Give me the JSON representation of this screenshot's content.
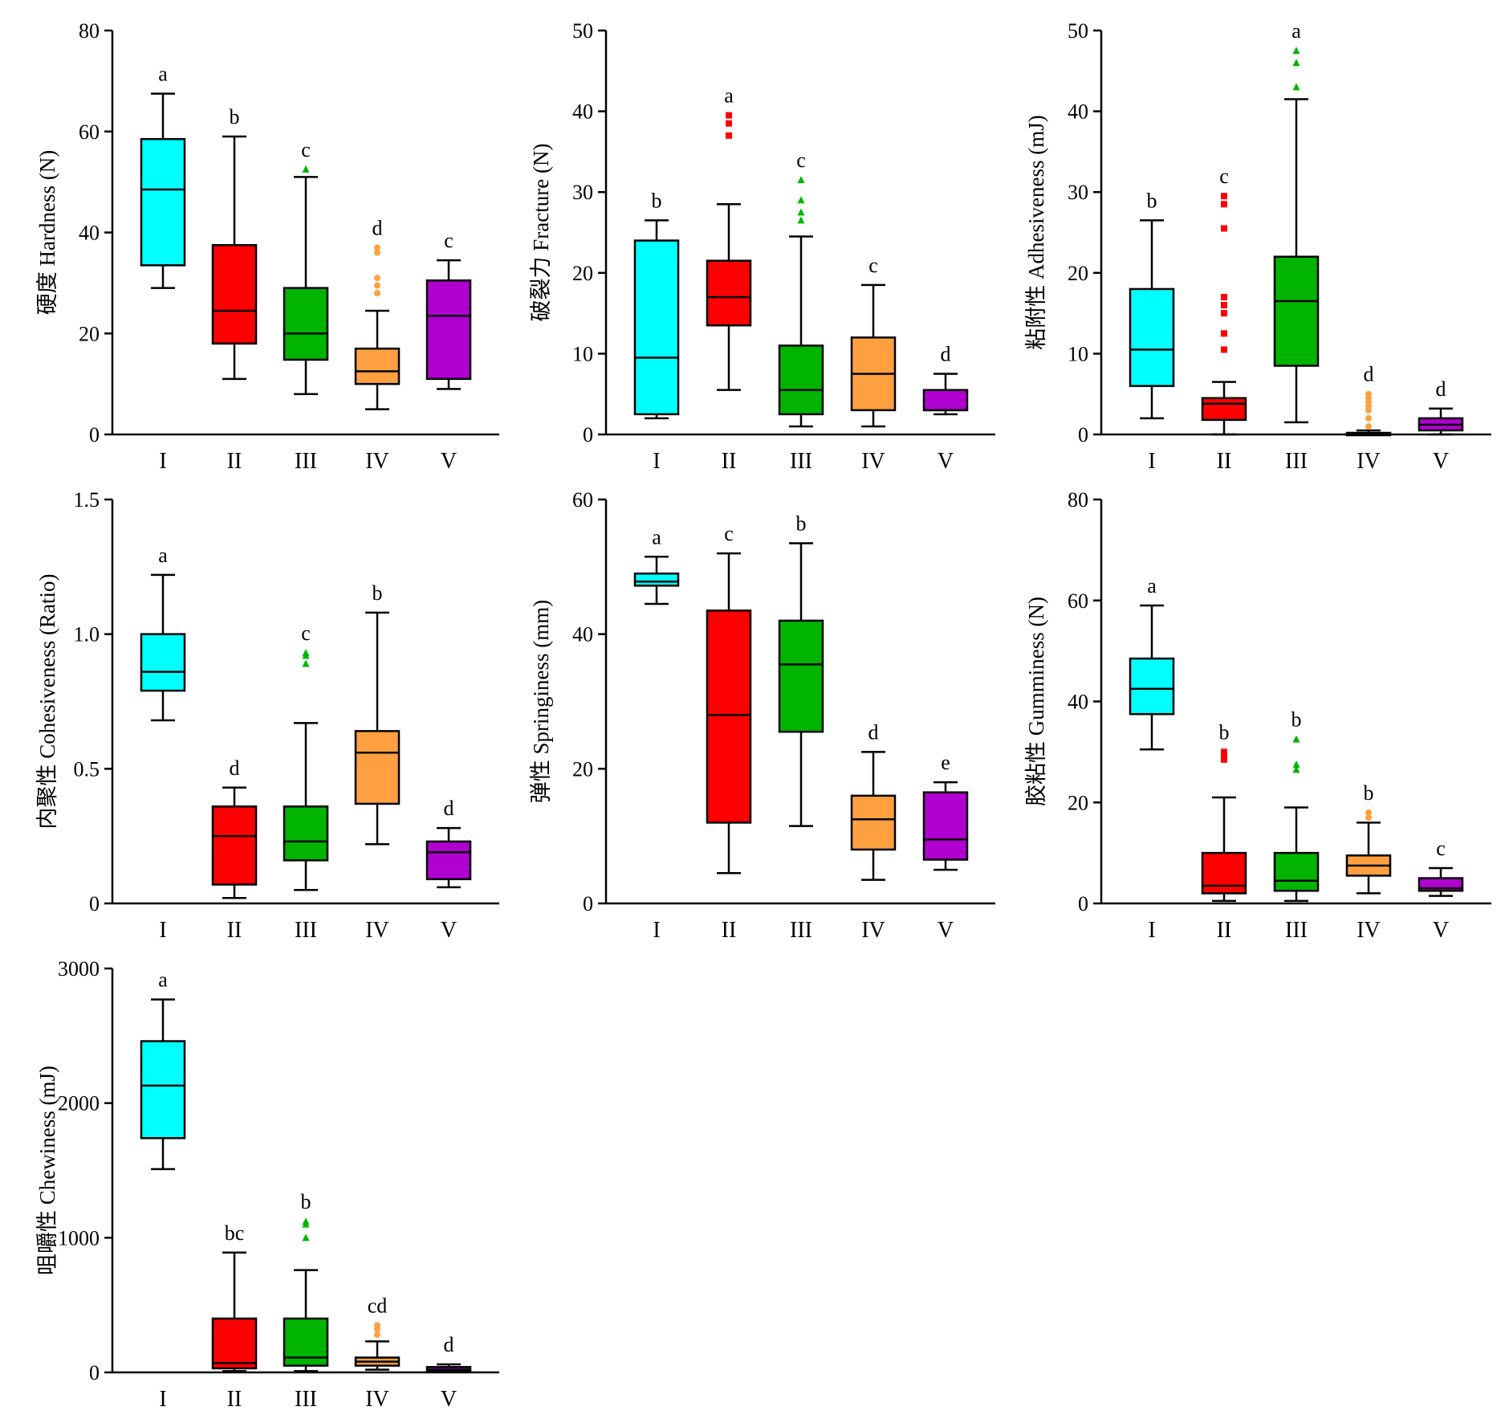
{
  "colors": [
    "#00ffff",
    "#ff0000",
    "#00b400",
    "#ffa040",
    "#b000d0"
  ],
  "chart_data": [
    {
      "type": "box",
      "ylabel": "硬度 Hardness (N)",
      "ylim": [
        0,
        80
      ],
      "yticks": [
        0,
        20,
        40,
        60,
        80
      ],
      "categories": [
        "I",
        "II",
        "III",
        "IV",
        "V"
      ],
      "boxes": [
        {
          "min": 29,
          "q1": 33.5,
          "median": 48.5,
          "q3": 58.5,
          "max": 67.5,
          "outliers": []
        },
        {
          "min": 11,
          "q1": 18,
          "median": 24.5,
          "q3": 37.5,
          "max": 59,
          "outliers": []
        },
        {
          "min": 8,
          "q1": 14.8,
          "median": 20,
          "q3": 29,
          "max": 51,
          "outliers": [
            52.5
          ]
        },
        {
          "min": 5,
          "q1": 10,
          "median": 12.5,
          "q3": 17,
          "max": 24.5,
          "outliers": [
            28,
            29.5,
            31,
            36,
            37
          ]
        },
        {
          "min": 9,
          "q1": 11,
          "median": 23.5,
          "q3": 30.5,
          "max": 34.5,
          "outliers": []
        }
      ],
      "letters": [
        "a",
        "b",
        "c",
        "d",
        "c"
      ]
    },
    {
      "type": "box",
      "ylabel": "破裂力 Fracture (N)",
      "ylim": [
        0,
        50
      ],
      "yticks": [
        0,
        10,
        20,
        30,
        40,
        50
      ],
      "categories": [
        "I",
        "II",
        "III",
        "IV",
        "V"
      ],
      "boxes": [
        {
          "min": 2,
          "q1": 2.5,
          "median": 9.5,
          "q3": 24,
          "max": 26.5,
          "outliers": []
        },
        {
          "min": 5.5,
          "q1": 13.5,
          "median": 17,
          "q3": 21.5,
          "max": 28.5,
          "outliers": [
            37,
            38.5,
            39.5
          ]
        },
        {
          "min": 1,
          "q1": 2.5,
          "median": 5.5,
          "q3": 11,
          "max": 24.5,
          "outliers": [
            26.5,
            27.5,
            29,
            31.5
          ]
        },
        {
          "min": 1,
          "q1": 3,
          "median": 7.5,
          "q3": 12,
          "max": 18.5,
          "outliers": []
        },
        {
          "min": 2.5,
          "q1": 3,
          "median": 3,
          "q3": 5.5,
          "max": 7.5,
          "outliers": []
        }
      ],
      "letters": [
        "b",
        "a",
        "c",
        "c",
        "d"
      ]
    },
    {
      "type": "box",
      "ylabel": "粘附性 Adhesiveness (mJ)",
      "ylim": [
        0,
        50
      ],
      "yticks": [
        0,
        10,
        20,
        30,
        40,
        50
      ],
      "categories": [
        "I",
        "II",
        "III",
        "IV",
        "V"
      ],
      "boxes": [
        {
          "min": 2,
          "q1": 6,
          "median": 10.5,
          "q3": 18,
          "max": 26.5,
          "outliers": []
        },
        {
          "min": 0,
          "q1": 1.8,
          "median": 3.8,
          "q3": 4.5,
          "max": 6.5,
          "outliers": [
            10.5,
            12.5,
            15,
            16,
            17,
            25.5,
            28.5,
            29.5
          ]
        },
        {
          "min": 1.5,
          "q1": 8.5,
          "median": 16.5,
          "q3": 22,
          "max": 41.5,
          "outliers": [
            43,
            46,
            47.5
          ]
        },
        {
          "min": 0,
          "q1": 0,
          "median": 0.1,
          "q3": 0.2,
          "max": 0.5,
          "outliers": [
            1,
            2,
            3,
            3.5,
            4,
            4.5,
            5
          ]
        },
        {
          "min": 0,
          "q1": 0.5,
          "median": 1.2,
          "q3": 2,
          "max": 3.2,
          "outliers": []
        }
      ],
      "letters": [
        "b",
        "c",
        "a",
        "d",
        "d"
      ]
    },
    {
      "type": "box",
      "ylabel": "内聚性 Cohesiveness (Ratio)",
      "ylim": [
        0,
        1.5
      ],
      "yticks": [
        "0",
        "0.5",
        "1.0",
        "1.5"
      ],
      "categories": [
        "I",
        "II",
        "III",
        "IV",
        "V"
      ],
      "boxes": [
        {
          "min": 0.68,
          "q1": 0.79,
          "median": 0.86,
          "q3": 1.0,
          "max": 1.22,
          "outliers": []
        },
        {
          "min": 0.02,
          "q1": 0.07,
          "median": 0.25,
          "q3": 0.36,
          "max": 0.43,
          "outliers": []
        },
        {
          "min": 0.05,
          "q1": 0.16,
          "median": 0.23,
          "q3": 0.36,
          "max": 0.67,
          "outliers": [
            0.89,
            0.92,
            0.93
          ]
        },
        {
          "min": 0.22,
          "q1": 0.37,
          "median": 0.56,
          "q3": 0.64,
          "max": 1.08,
          "outliers": []
        },
        {
          "min": 0.06,
          "q1": 0.09,
          "median": 0.19,
          "q3": 0.23,
          "max": 0.28,
          "outliers": []
        }
      ],
      "letters": [
        "a",
        "d",
        "c",
        "b",
        "d"
      ]
    },
    {
      "type": "box",
      "ylabel": "弹性 Springiness (mm)",
      "ylim": [
        0,
        60
      ],
      "yticks": [
        0,
        20,
        40,
        60
      ],
      "categories": [
        "I",
        "II",
        "III",
        "IV",
        "V"
      ],
      "boxes": [
        {
          "min": 44.5,
          "q1": 47.2,
          "median": 47.8,
          "q3": 49,
          "max": 51.5,
          "outliers": []
        },
        {
          "min": 4.5,
          "q1": 12,
          "median": 28,
          "q3": 43.5,
          "max": 52,
          "outliers": []
        },
        {
          "min": 11.5,
          "q1": 25.5,
          "median": 35.5,
          "q3": 42,
          "max": 53.5,
          "outliers": []
        },
        {
          "min": 3.5,
          "q1": 8,
          "median": 12.5,
          "q3": 16,
          "max": 22.5,
          "outliers": []
        },
        {
          "min": 5,
          "q1": 6.5,
          "median": 9.5,
          "q3": 16.5,
          "max": 18,
          "outliers": []
        }
      ],
      "letters": [
        "a",
        "c",
        "b",
        "d",
        "e"
      ]
    },
    {
      "type": "box",
      "ylabel": "胶粘性 Gumminess (N)",
      "ylim": [
        0,
        80
      ],
      "yticks": [
        0,
        20,
        40,
        60,
        80
      ],
      "categories": [
        "I",
        "II",
        "III",
        "IV",
        "V"
      ],
      "boxes": [
        {
          "min": 30.5,
          "q1": 37.5,
          "median": 42.5,
          "q3": 48.5,
          "max": 59,
          "outliers": []
        },
        {
          "min": 0.5,
          "q1": 2,
          "median": 3.5,
          "q3": 10,
          "max": 21,
          "outliers": [
            28.5,
            29.5,
            30
          ]
        },
        {
          "min": 0.5,
          "q1": 2.5,
          "median": 4.5,
          "q3": 10,
          "max": 19,
          "outliers": [
            26.5,
            27.5,
            32.5
          ]
        },
        {
          "min": 2,
          "q1": 5.5,
          "median": 7.5,
          "q3": 9.5,
          "max": 16,
          "outliers": [
            17,
            18
          ]
        },
        {
          "min": 1.5,
          "q1": 2.5,
          "median": 3,
          "q3": 5,
          "max": 7,
          "outliers": []
        }
      ],
      "letters": [
        "a",
        "b",
        "b",
        "b",
        "c"
      ]
    },
    {
      "type": "box",
      "ylabel": "咀嚼性 Chewiness (mJ)",
      "ylim": [
        0,
        3000
      ],
      "yticks": [
        0,
        1000,
        2000,
        3000
      ],
      "categories": [
        "I",
        "II",
        "III",
        "IV",
        "V"
      ],
      "boxes": [
        {
          "min": 1510,
          "q1": 1740,
          "median": 2130,
          "q3": 2460,
          "max": 2770,
          "outliers": []
        },
        {
          "min": 10,
          "q1": 30,
          "median": 70,
          "q3": 400,
          "max": 890,
          "outliers": []
        },
        {
          "min": 10,
          "q1": 50,
          "median": 110,
          "q3": 400,
          "max": 760,
          "outliers": [
            1000,
            1100,
            1120
          ]
        },
        {
          "min": 20,
          "q1": 50,
          "median": 80,
          "q3": 110,
          "max": 230,
          "outliers": [
            280,
            320,
            350
          ]
        },
        {
          "min": 5,
          "q1": 10,
          "median": 20,
          "q3": 40,
          "max": 60,
          "outliers": []
        }
      ],
      "letters": [
        "a",
        "bc",
        "b",
        "cd",
        "d"
      ]
    }
  ]
}
